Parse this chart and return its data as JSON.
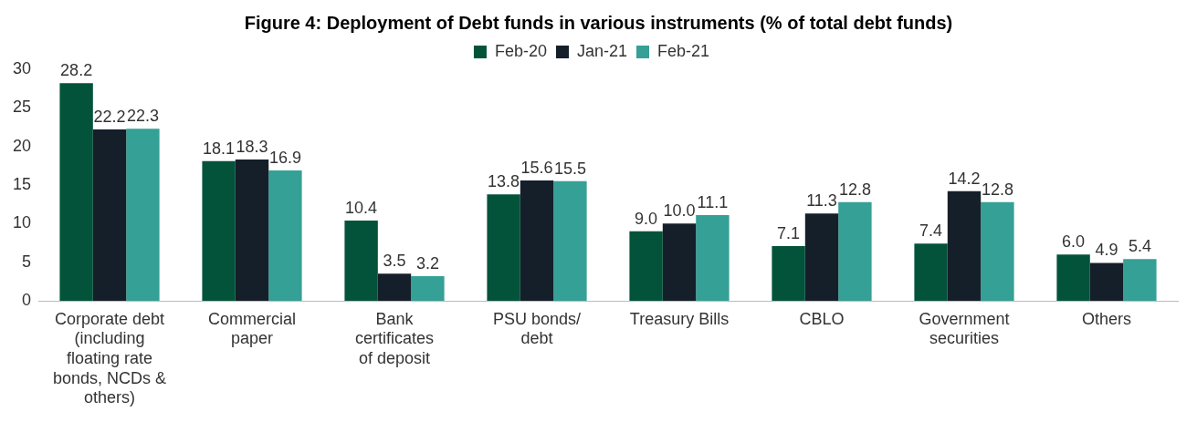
{
  "chart_data": {
    "type": "bar",
    "title": "Figure 4: Deployment of Debt funds in various instruments (% of total debt funds)",
    "categories": [
      "Corporate debt (including floating rate bonds, NCDs & others)",
      "Commercial paper",
      "Bank certificates of deposit",
      "PSU bonds/ debt",
      "Treasury Bills",
      "CBLO",
      "Government securities",
      "Others"
    ],
    "series": [
      {
        "name": "Feb-20",
        "color": "#03533a",
        "values": [
          28.2,
          18.1,
          10.4,
          13.8,
          9,
          7.1,
          7.4,
          6
        ],
        "value_labels": [
          "28.2",
          "18.1",
          "10.4",
          "13.8",
          "9.0",
          "7.1",
          "7.4",
          "6.0"
        ]
      },
      {
        "name": "Jan-21",
        "color": "#151f2a",
        "values": [
          22.2,
          18.3,
          3.5,
          15.6,
          10,
          11.3,
          14.2,
          4.9
        ],
        "value_labels": [
          "22.2",
          "18.3",
          "3.5",
          "15.6",
          "10.0",
          "11.3",
          "14.2",
          "4.9"
        ]
      },
      {
        "name": "Feb-21",
        "color": "#35a095",
        "values": [
          22.3,
          16.9,
          3.2,
          15.5,
          11.1,
          12.8,
          12.8,
          5.4
        ],
        "value_labels": [
          "22.3",
          "16.9",
          "3.2",
          "15.5",
          "11.1",
          "12.8",
          "12.8",
          "5.4"
        ]
      }
    ],
    "ylim": [
      0,
      30
    ],
    "yticks": [
      0,
      5,
      10,
      15,
      20,
      25,
      30
    ],
    "grid": false,
    "legend": "top"
  }
}
